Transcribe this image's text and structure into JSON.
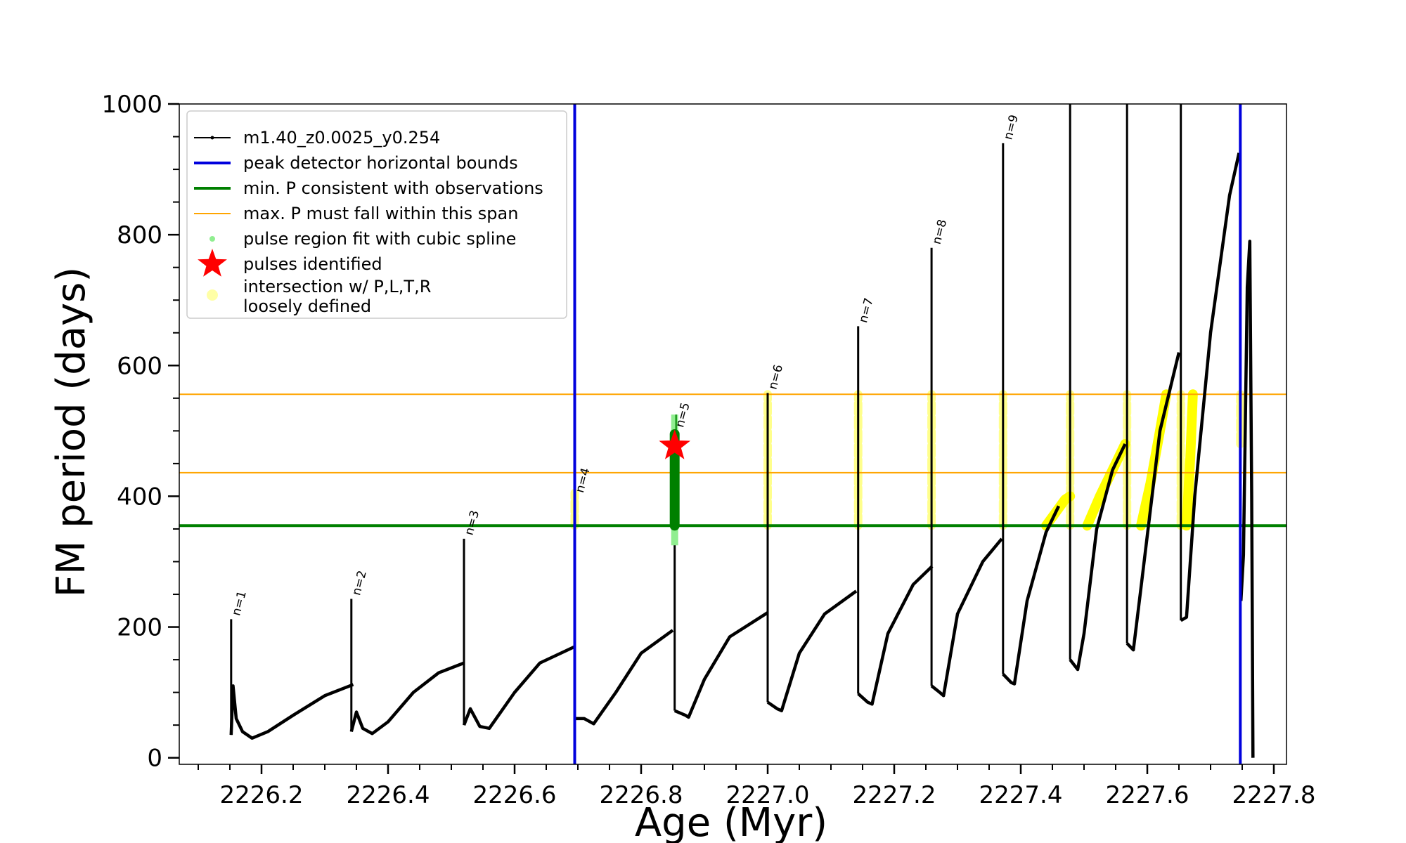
{
  "chart_data": {
    "type": "line",
    "xlabel": "Age (Myr)",
    "ylabel": "FM period (days)",
    "xlim": [
      2226.07,
      2227.82
    ],
    "ylim": [
      -10,
      1000
    ],
    "x_ticks": [
      "2226.2",
      "2226.4",
      "2226.6",
      "2226.8",
      "2227.0",
      "2227.2",
      "2227.4",
      "2227.6",
      "2227.8"
    ],
    "x_tick_values": [
      2226.2,
      2226.4,
      2226.6,
      2226.8,
      2227.0,
      2227.2,
      2227.4,
      2227.6,
      2227.8
    ],
    "y_ticks": [
      "0",
      "200",
      "400",
      "600",
      "800",
      "1000"
    ],
    "y_tick_values": [
      0,
      200,
      400,
      600,
      800,
      1000
    ],
    "grid": false,
    "legend_position": "top-left",
    "series": [
      {
        "name": "m1.40_z0.0025_y0.254",
        "color": "#000000",
        "segments": [
          [
            [
              2226.152,
              35
            ],
            [
              2226.155,
              110
            ],
            [
              2226.16,
              60
            ],
            [
              2226.17,
              40
            ],
            [
              2226.185,
              30
            ],
            [
              2226.21,
              40
            ],
            [
              2226.25,
              65
            ],
            [
              2226.3,
              95
            ],
            [
              2226.345,
              112
            ]
          ],
          [
            [
              2226.342,
              40
            ],
            [
              2226.35,
              70
            ],
            [
              2226.36,
              45
            ],
            [
              2226.375,
              37
            ],
            [
              2226.4,
              55
            ],
            [
              2226.44,
              100
            ],
            [
              2226.48,
              130
            ],
            [
              2226.52,
              145
            ]
          ],
          [
            [
              2226.52,
              50
            ],
            [
              2226.53,
              75
            ],
            [
              2226.545,
              48
            ],
            [
              2226.56,
              45
            ],
            [
              2226.6,
              100
            ],
            [
              2226.64,
              145
            ],
            [
              2226.695,
              170
            ]
          ],
          [
            [
              2226.695,
              60
            ],
            [
              2226.71,
              60
            ],
            [
              2226.725,
              52
            ],
            [
              2226.76,
              100
            ],
            [
              2226.8,
              160
            ],
            [
              2226.85,
              195
            ]
          ],
          [
            [
              2226.853,
              72
            ],
            [
              2226.87,
              65
            ],
            [
              2226.875,
              62
            ],
            [
              2226.9,
              120
            ],
            [
              2226.94,
              185
            ],
            [
              2227.0,
              222
            ]
          ],
          [
            [
              2227.0,
              85
            ],
            [
              2227.015,
              75
            ],
            [
              2227.022,
              72
            ],
            [
              2227.05,
              160
            ],
            [
              2227.09,
              220
            ],
            [
              2227.14,
              255
            ]
          ],
          [
            [
              2227.143,
              98
            ],
            [
              2227.158,
              85
            ],
            [
              2227.165,
              82
            ],
            [
              2227.19,
              190
            ],
            [
              2227.23,
              265
            ],
            [
              2227.26,
              293
            ]
          ],
          [
            [
              2227.259,
              110
            ],
            [
              2227.272,
              100
            ],
            [
              2227.278,
              95
            ],
            [
              2227.3,
              220
            ],
            [
              2227.34,
              300
            ],
            [
              2227.37,
              335
            ]
          ],
          [
            [
              2227.372,
              128
            ],
            [
              2227.385,
              115
            ],
            [
              2227.39,
              113
            ],
            [
              2227.41,
              240
            ],
            [
              2227.44,
              345
            ],
            [
              2227.46,
              385
            ]
          ],
          [
            [
              2227.478,
              150
            ],
            [
              2227.49,
              135
            ],
            [
              2227.5,
              190
            ],
            [
              2227.52,
              350
            ],
            [
              2227.545,
              440
            ],
            [
              2227.565,
              480
            ]
          ],
          [
            [
              2227.568,
              175
            ],
            [
              2227.578,
              165
            ],
            [
              2227.59,
              260
            ],
            [
              2227.62,
              500
            ],
            [
              2227.65,
              620
            ]
          ],
          [
            [
              2227.653,
              210
            ],
            [
              2227.662,
              215
            ],
            [
              2227.675,
              400
            ],
            [
              2227.7,
              650
            ],
            [
              2227.73,
              860
            ],
            [
              2227.745,
              925
            ]
          ],
          [
            [
              2227.748,
              240
            ],
            [
              2227.752,
              310
            ],
            [
              2227.758,
              720
            ],
            [
              2227.762,
              790
            ],
            [
              2227.765,
              400
            ],
            [
              2227.767,
              0
            ]
          ]
        ],
        "spikes": [
          [
            2226.152,
            35,
            212
          ],
          [
            2226.342,
            40,
            243
          ],
          [
            2226.52,
            50,
            335
          ],
          [
            2226.695,
            60,
            378
          ],
          [
            2226.853,
            72,
            500
          ],
          [
            2227.0,
            85,
            558
          ],
          [
            2227.143,
            98,
            660
          ],
          [
            2227.259,
            110,
            780
          ],
          [
            2227.372,
            128,
            940
          ],
          [
            2227.478,
            150,
            1000
          ],
          [
            2227.568,
            175,
            1000
          ],
          [
            2227.653,
            210,
            1000
          ]
        ]
      },
      {
        "name": "peak detector horizontal bounds",
        "color": "#0000dd",
        "x": [
          2226.695,
          2227.747
        ]
      },
      {
        "name": "min. P consistent with observations",
        "color": "#008000",
        "y": 355
      },
      {
        "name": "max. P must fall within this span",
        "color": "#ffa500",
        "y": [
          436,
          556
        ]
      },
      {
        "name": "pulse region fit with cubic spline",
        "color": "#90ee90",
        "x": 2226.853,
        "y_range": [
          325,
          525
        ]
      },
      {
        "name": "pulses identified",
        "color": "#ff0000",
        "points": [
          [
            2226.853,
            477
          ]
        ]
      },
      {
        "name": "intersection w/ P,L,T,R\nloosely defined",
        "color": "#ffff00",
        "vertical_bands": [
          [
            2226.695,
            355,
            405
          ],
          [
            2227.0,
            355,
            556
          ],
          [
            2227.143,
            355,
            556
          ],
          [
            2227.259,
            355,
            556
          ],
          [
            2227.372,
            355,
            556
          ],
          [
            2227.478,
            355,
            556
          ],
          [
            2227.568,
            355,
            556
          ],
          [
            2227.653,
            355,
            556
          ],
          [
            2227.747,
            480,
            556
          ]
        ],
        "curves": [
          [
            [
              2227.44,
              355
            ],
            [
              2227.455,
              375
            ],
            [
              2227.47,
              395
            ],
            [
              2227.478,
              400
            ]
          ],
          [
            [
              2227.505,
              355
            ],
            [
              2227.525,
              400
            ],
            [
              2227.545,
              440
            ],
            [
              2227.565,
              480
            ]
          ],
          [
            [
              2227.59,
              355
            ],
            [
              2227.605,
              420
            ],
            [
              2227.62,
              500
            ],
            [
              2227.63,
              556
            ]
          ],
          [
            [
              2227.662,
              355
            ],
            [
              2227.668,
              460
            ],
            [
              2227.672,
              556
            ]
          ]
        ]
      }
    ],
    "annotations": [
      {
        "text": "n=1",
        "x": 2226.152,
        "y": 212
      },
      {
        "text": "n=2",
        "x": 2226.342,
        "y": 243
      },
      {
        "text": "n=3",
        "x": 2226.52,
        "y": 335
      },
      {
        "text": "n=4",
        "x": 2226.695,
        "y": 400
      },
      {
        "text": "n=5",
        "x": 2226.853,
        "y": 500
      },
      {
        "text": "n=6",
        "x": 2227.0,
        "y": 558
      },
      {
        "text": "n=7",
        "x": 2227.143,
        "y": 660
      },
      {
        "text": "n=8",
        "x": 2227.259,
        "y": 780
      },
      {
        "text": "n=9",
        "x": 2227.372,
        "y": 940
      }
    ]
  }
}
